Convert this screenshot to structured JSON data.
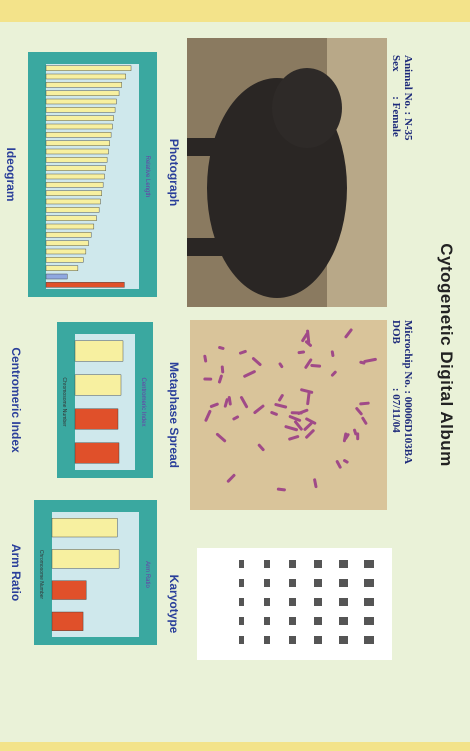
{
  "title": "Cytogenetic Digital Album",
  "animal_no": "Animal No. : N-35",
  "sex": "Sex         : Female",
  "microchip": "Microchip No. : 00006D103BA",
  "dob": "DOB                : 07/11/04",
  "photograph": {
    "caption": "Photograph"
  },
  "metaphase": {
    "caption": "Metaphase Spread"
  },
  "karyotype": {
    "caption": "Karyotype"
  },
  "ideogram": {
    "caption": "Ideogram",
    "chart_title": "Relative Length",
    "values": [
      6.4,
      6.0,
      5.7,
      5.5,
      5.3,
      5.2,
      5.1,
      5.0,
      4.9,
      4.8,
      4.7,
      4.6,
      4.5,
      4.4,
      4.3,
      4.2,
      4.1,
      4.0,
      3.8,
      3.6,
      3.4,
      3.2,
      3.0,
      2.8,
      2.4,
      1.6,
      5.9
    ],
    "colors": [
      "#f7f0a0",
      "#f7f0a0",
      "#f7f0a0",
      "#f7f0a0",
      "#f7f0a0",
      "#f7f0a0",
      "#f7f0a0",
      "#f7f0a0",
      "#f7f0a0",
      "#f7f0a0",
      "#f7f0a0",
      "#f7f0a0",
      "#f7f0a0",
      "#f7f0a0",
      "#f7f0a0",
      "#f7f0a0",
      "#f7f0a0",
      "#f7f0a0",
      "#f7f0a0",
      "#f7f0a0",
      "#f7f0a0",
      "#f7f0a0",
      "#f7f0a0",
      "#f7f0a0",
      "#f7f0a0",
      "#8fa8e0",
      "#e0502a"
    ],
    "ylim": [
      0,
      7
    ]
  },
  "centromeric": {
    "caption": "Centromeric Index",
    "chart_title": "Centromeric Index",
    "axis_label": "Chromosome Number",
    "values": [
      48,
      46,
      43,
      44
    ],
    "colors": [
      "#f7f0a0",
      "#f7f0a0",
      "#e0502a",
      "#e0502a"
    ],
    "ylim": [
      0,
      60
    ]
  },
  "arm_ratio": {
    "caption": "Arm Ratio",
    "chart_title": "Arm Ratio",
    "axis_label": "Chromosome Number",
    "values": [
      1.05,
      1.08,
      0.55,
      0.5
    ],
    "colors": [
      "#f7f0a0",
      "#f7f0a0",
      "#e0502a",
      "#e0502a"
    ],
    "ylim": [
      0,
      1.4
    ]
  }
}
